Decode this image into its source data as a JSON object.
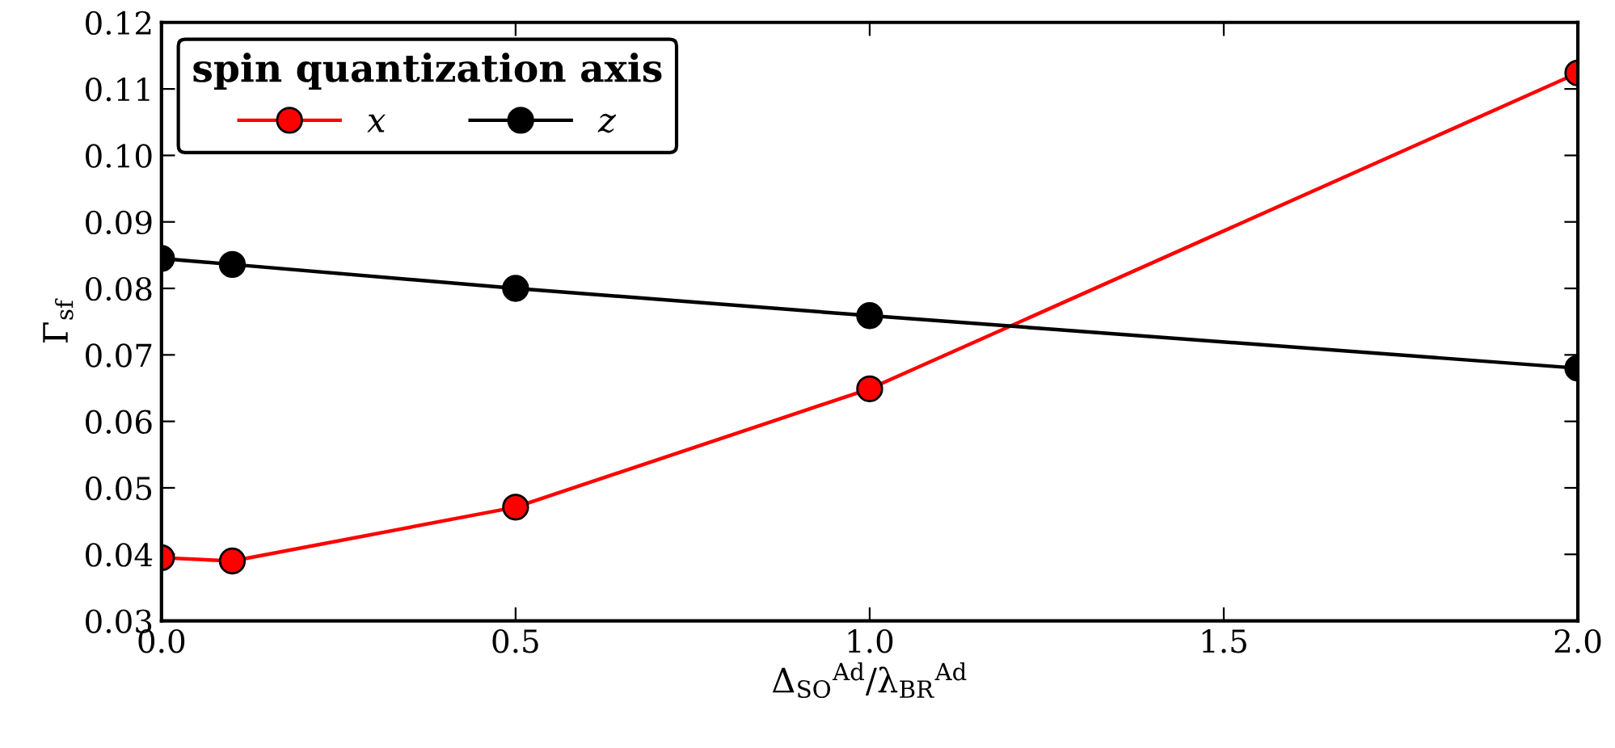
{
  "chart_data": {
    "type": "line",
    "xlabel": "Δ$_{SO}$$^{Ad}$/λ$_{BR}$$^{Ad}$",
    "ylabel": "Γ$_{sf}$",
    "legend_title": "spin quantization axis",
    "x": [
      0.0,
      0.1,
      0.5,
      1.0,
      2.0
    ],
    "series": [
      {
        "name": "x",
        "color": "#ff0000",
        "values": [
          0.0395,
          0.039,
          0.0471,
          0.0649,
          0.1124
        ]
      },
      {
        "name": "z",
        "color": "#000000",
        "values": [
          0.0845,
          0.0836,
          0.08,
          0.0759,
          0.068
        ]
      }
    ],
    "xlim": [
      0.0,
      2.0
    ],
    "ylim": [
      0.03,
      0.12
    ],
    "xticks": [
      {
        "value": 0.0,
        "label": "0.0"
      },
      {
        "value": 0.5,
        "label": "0.5"
      },
      {
        "value": 1.0,
        "label": "1.0"
      },
      {
        "value": 1.5,
        "label": "1.5"
      },
      {
        "value": 2.0,
        "label": "2.0"
      }
    ],
    "yticks": [
      {
        "value": 0.03,
        "label": "0.03"
      },
      {
        "value": 0.04,
        "label": "0.04"
      },
      {
        "value": 0.05,
        "label": "0.05"
      },
      {
        "value": 0.06,
        "label": "0.06"
      },
      {
        "value": 0.07,
        "label": "0.07"
      },
      {
        "value": 0.08,
        "label": "0.08"
      },
      {
        "value": 0.09,
        "label": "0.09"
      },
      {
        "value": 0.1,
        "label": "0.10"
      },
      {
        "value": 0.11,
        "label": "0.11"
      },
      {
        "value": 0.12,
        "label": "0.12"
      }
    ],
    "marker": "circle",
    "line_style": "solid",
    "grid": false,
    "legend": "top left"
  }
}
